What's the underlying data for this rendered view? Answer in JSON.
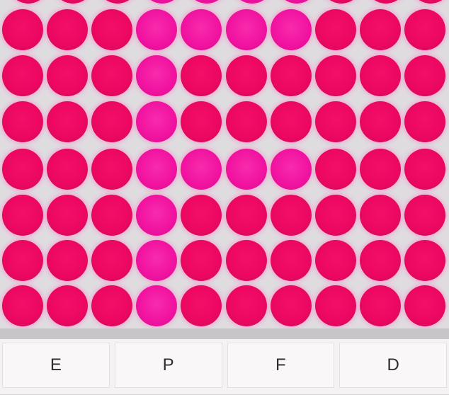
{
  "puzzle": {
    "type": "odd-color-hidden-letter-quiz",
    "hidden_letter": "F",
    "grid": {
      "columns": 10,
      "rows": 7,
      "pattern": [
        "0001111000",
        "0001000000",
        "0001000000",
        "0001111000",
        "0001000000",
        "0001000000",
        "0001000000"
      ],
      "top_cutoff_row": "0001111000"
    },
    "colors": {
      "board_background": "#dfdce0",
      "dot_base": "#ec0861",
      "dot_odd": "#f113a0",
      "dot_glow": "#ff82c3",
      "separator": "#c8c5c8",
      "answer_bar_background": "#f4f2f3",
      "button_background": "#f9f7f8",
      "button_border": "#e2e0e1",
      "button_text": "#2d2d2d"
    }
  },
  "answers": {
    "options": [
      {
        "label": "E"
      },
      {
        "label": "P"
      },
      {
        "label": "F"
      },
      {
        "label": "D"
      }
    ]
  }
}
